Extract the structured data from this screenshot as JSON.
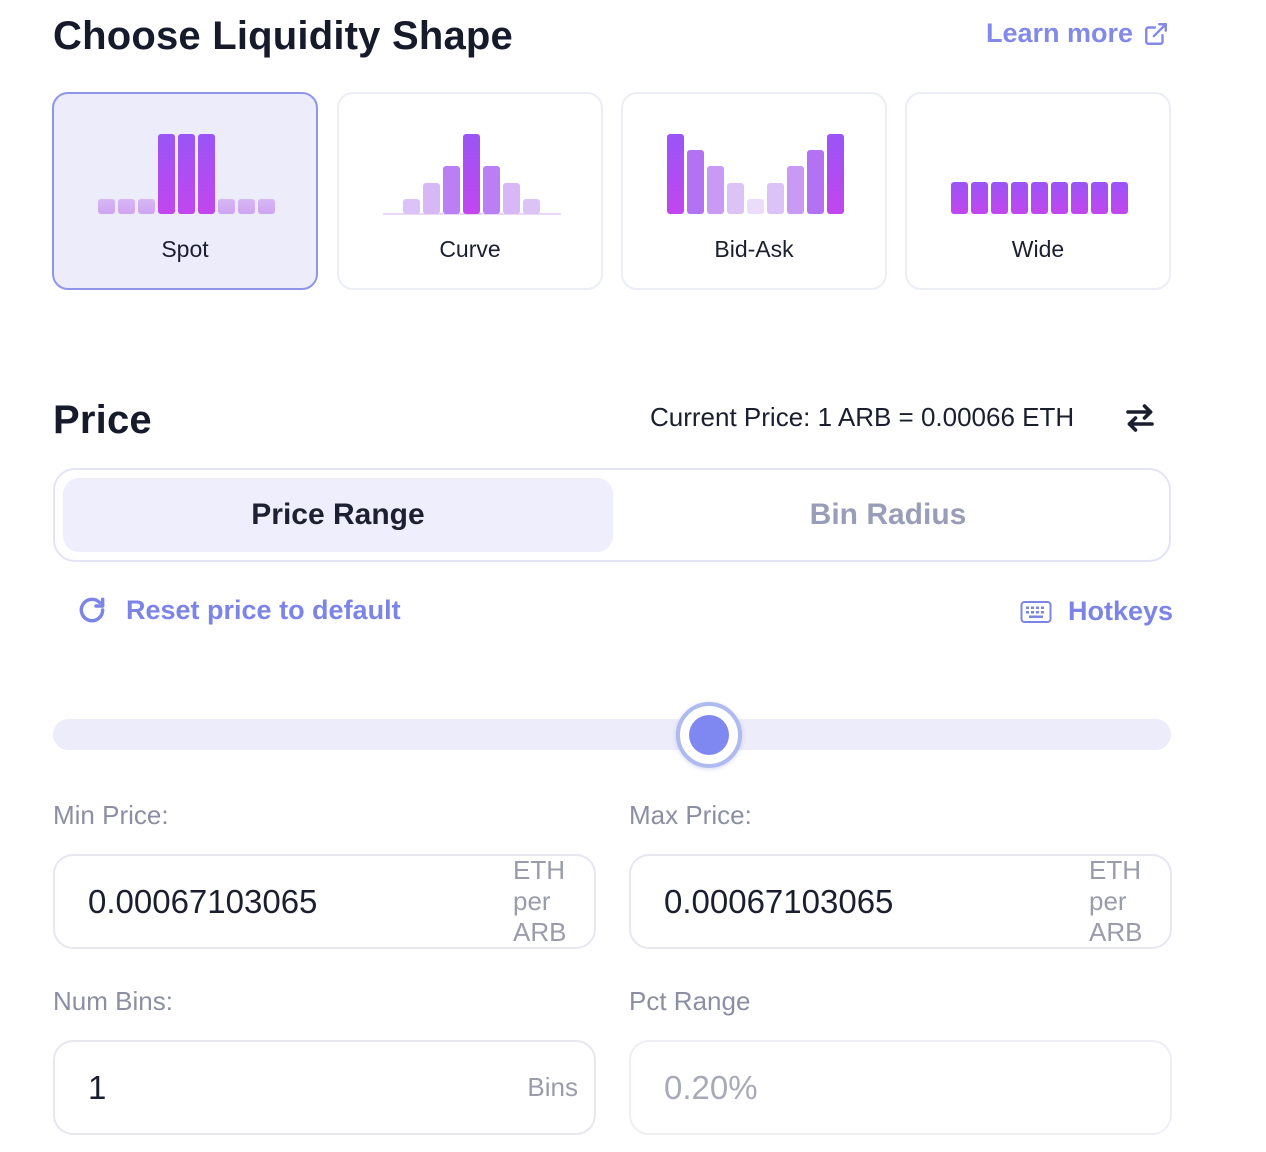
{
  "shape_section": {
    "title": "Choose Liquidity Shape",
    "learn_more": "Learn more",
    "shapes": [
      {
        "label": "Spot",
        "selected": true
      },
      {
        "label": "Curve",
        "selected": false
      },
      {
        "label": "Bid-Ask",
        "selected": false
      },
      {
        "label": "Wide",
        "selected": false
      }
    ]
  },
  "price_section": {
    "title": "Price",
    "current_price": "Current Price: 1 ARB = 0.00066 ETH",
    "toggle": {
      "active": "Price Range",
      "inactive": "Bin Radius"
    },
    "reset_label": "Reset price to default",
    "hotkeys_label": "Hotkeys",
    "slider_position_pct": 56
  },
  "fields": {
    "min_price": {
      "label": "Min Price:",
      "value": "0.00067103065",
      "unit": "ETH per ARB"
    },
    "max_price": {
      "label": "Max Price:",
      "value": "0.00067103065",
      "unit": "ETH per ARB"
    },
    "num_bins": {
      "label": "Num Bins:",
      "value": "1",
      "unit": "Bins"
    },
    "pct_range": {
      "label": "Pct Range",
      "value": "0.20%"
    }
  },
  "colors": {
    "accent": "#7c84e6",
    "bar_strong": "#a64ff5",
    "bar_light": "#dcc3f7"
  }
}
